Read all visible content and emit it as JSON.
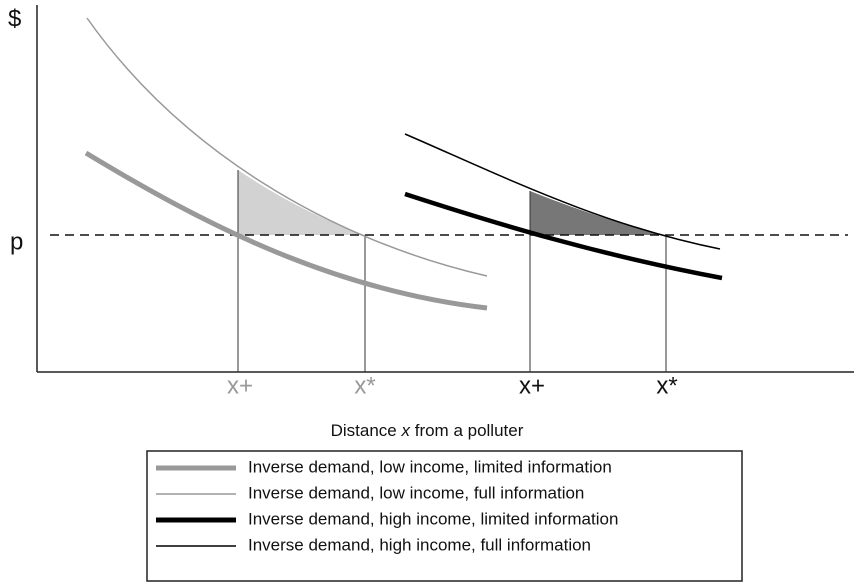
{
  "axes": {
    "y_label": "$",
    "price_label": "p"
  },
  "ticks": {
    "low_income": [
      "x+",
      "x*"
    ],
    "high_income": [
      "x+",
      "x*"
    ]
  },
  "x_axis_title": {
    "before": "Distance",
    "variable": "x",
    "after": "from a polluter"
  },
  "legend": [
    "Inverse demand, low income, limited information",
    "Inverse demand, low income, full information",
    "Inverse demand, high income, limited information",
    "Inverse demand, high income, full information"
  ]
}
